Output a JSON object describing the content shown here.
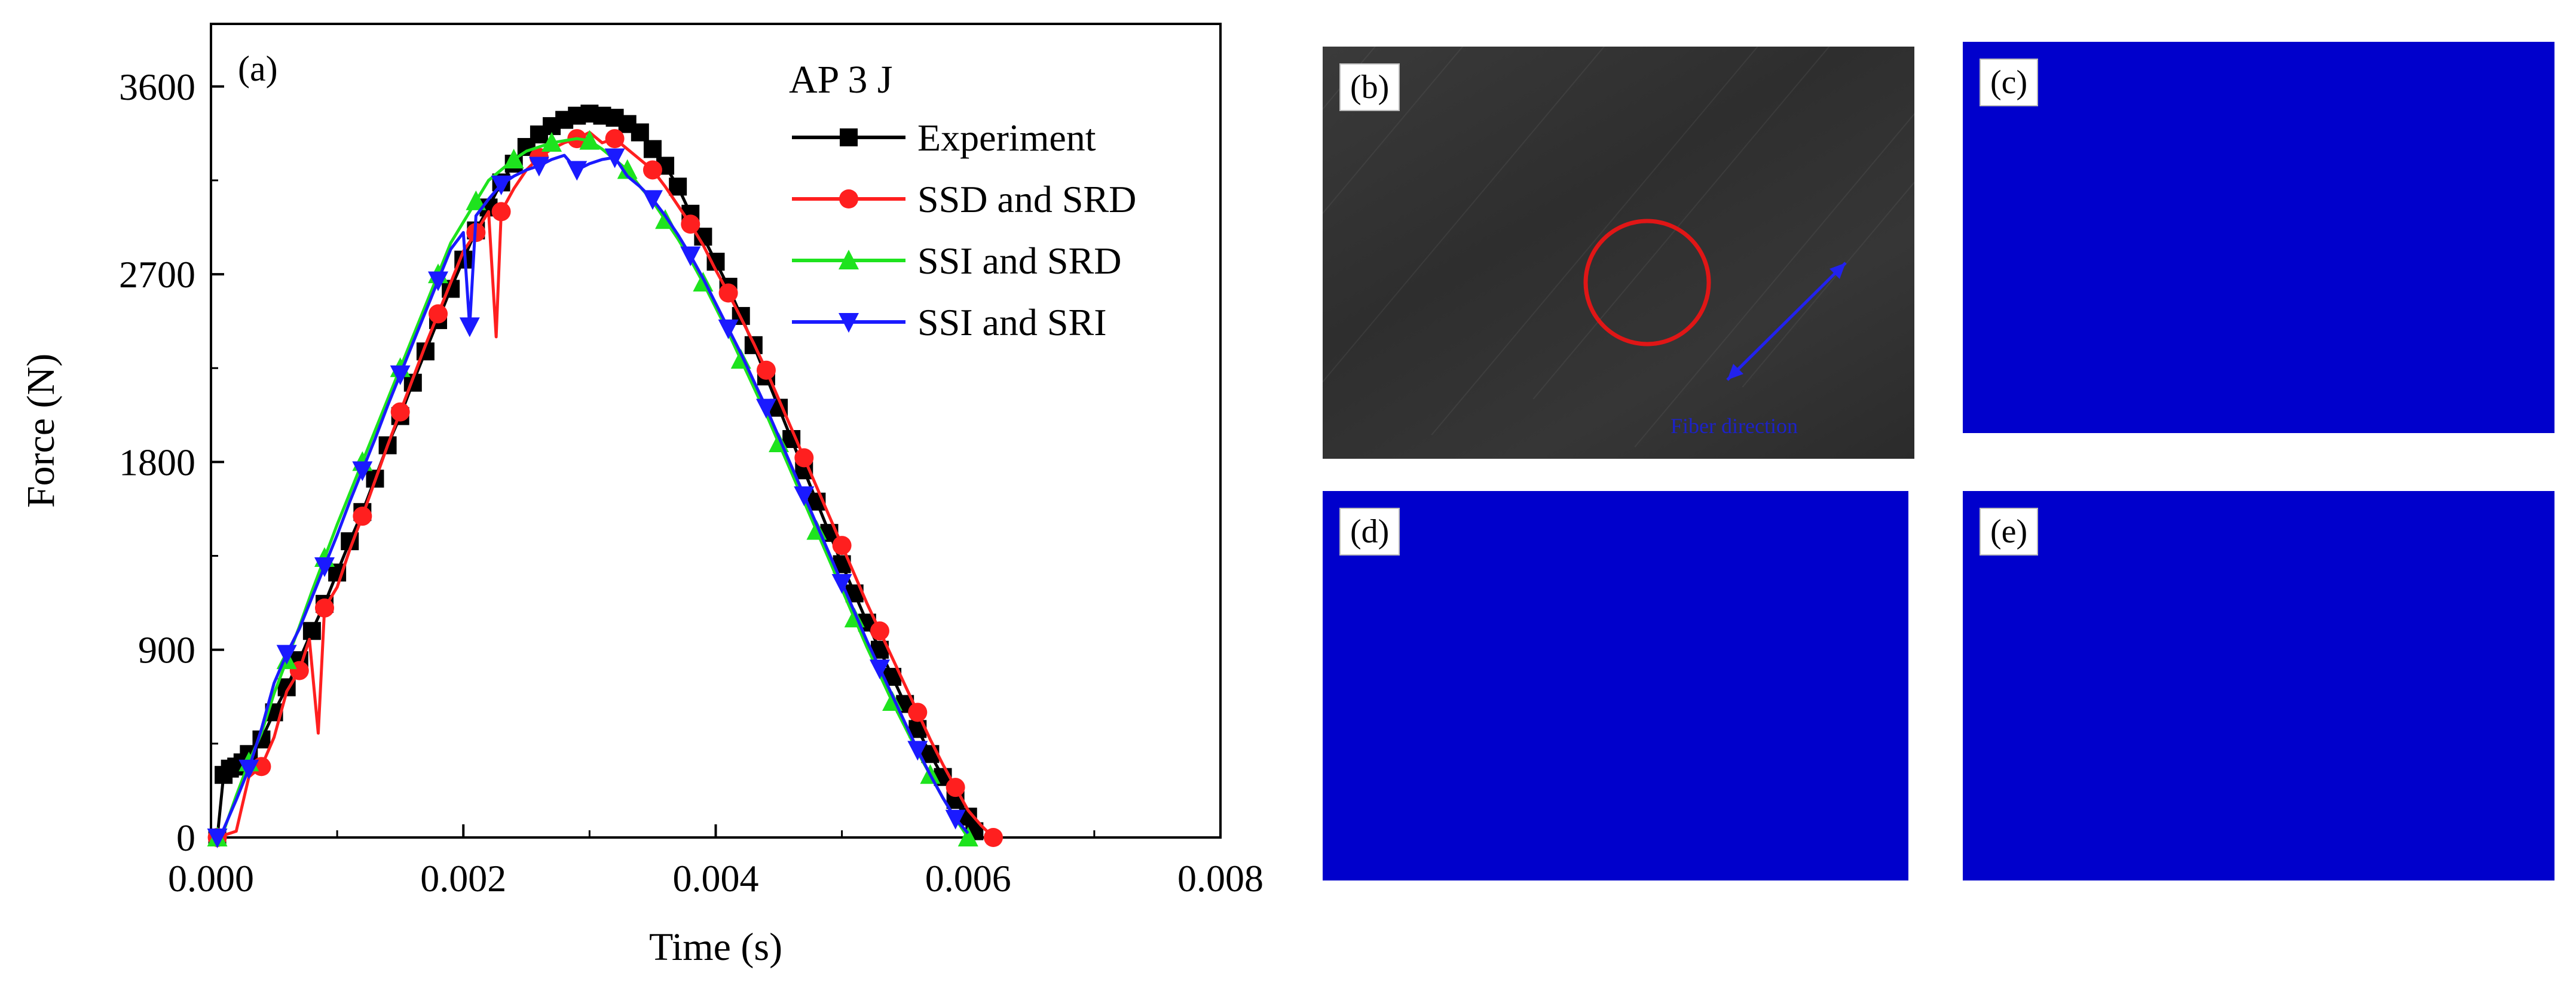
{
  "chart_data": {
    "type": "line",
    "panel_label": "(a)",
    "legend_title": "AP 3 J",
    "xlabel": "Time (s)",
    "ylabel": "Force (N)",
    "xlim": [
      0,
      0.008
    ],
    "ylim": [
      0,
      3900
    ],
    "x_ticks": [
      0,
      0.002,
      0.004,
      0.006,
      0.008
    ],
    "x_tick_labels": [
      "0.000",
      "0.002",
      "0.004",
      "0.006",
      "0.008"
    ],
    "y_ticks": [
      0,
      900,
      1800,
      2700,
      3600
    ],
    "y_tick_labels": [
      "0",
      "900",
      "1800",
      "2700",
      "3600"
    ],
    "legend_position": "top-right",
    "series": [
      {
        "name": "Experiment",
        "color": "#000000",
        "marker": "square",
        "x": [
          5e-05,
          0.0001,
          0.00015,
          0.0002,
          0.00025,
          0.0003,
          0.0004,
          0.0005,
          0.0006,
          0.0007,
          0.0008,
          0.0009,
          0.001,
          0.0011,
          0.0012,
          0.0013,
          0.0014,
          0.0015,
          0.0016,
          0.0017,
          0.0018,
          0.0019,
          0.002,
          0.0021,
          0.0022,
          0.0023,
          0.0024,
          0.0025,
          0.0026,
          0.0027,
          0.0028,
          0.0029,
          0.003,
          0.0031,
          0.0032,
          0.0033,
          0.0034,
          0.0035,
          0.0036,
          0.0037,
          0.0038,
          0.0039,
          0.004,
          0.0041,
          0.0042,
          0.0043,
          0.0044,
          0.0045,
          0.0046,
          0.0047,
          0.0048,
          0.0049,
          0.005,
          0.0051,
          0.0052,
          0.0053,
          0.0054,
          0.0055,
          0.0056,
          0.0057,
          0.0058,
          0.0059,
          0.006,
          0.00605
        ],
        "y": [
          0,
          300,
          330,
          340,
          360,
          400,
          470,
          600,
          720,
          850,
          990,
          1120,
          1270,
          1420,
          1560,
          1720,
          1880,
          2020,
          2180,
          2330,
          2480,
          2630,
          2770,
          2910,
          3020,
          3140,
          3230,
          3310,
          3370,
          3410,
          3440,
          3460,
          3470,
          3460,
          3450,
          3420,
          3380,
          3300,
          3220,
          3120,
          2990,
          2880,
          2760,
          2640,
          2500,
          2360,
          2210,
          2060,
          1910,
          1760,
          1610,
          1460,
          1310,
          1170,
          1030,
          900,
          770,
          640,
          520,
          400,
          290,
          180,
          100,
          30
        ]
      },
      {
        "name": "SSD and SRD",
        "color": "#ff1f1f",
        "marker": "circle",
        "x": [
          5e-05,
          0.0002,
          0.0003,
          0.0004,
          0.0005,
          0.0006,
          0.0007,
          0.00078,
          0.00085,
          0.0009,
          0.001,
          0.0011,
          0.0012,
          0.0013,
          0.0014,
          0.0015,
          0.0016,
          0.0017,
          0.0018,
          0.0019,
          0.002,
          0.0021,
          0.0022,
          0.00226,
          0.0023,
          0.0024,
          0.0025,
          0.0026,
          0.0027,
          0.0028,
          0.0029,
          0.003,
          0.0031,
          0.0032,
          0.0033,
          0.0034,
          0.0035,
          0.0036,
          0.0037,
          0.0038,
          0.0039,
          0.004,
          0.0041,
          0.0042,
          0.0043,
          0.0044,
          0.0045,
          0.0046,
          0.0047,
          0.0048,
          0.0049,
          0.005,
          0.0051,
          0.0052,
          0.0053,
          0.0054,
          0.0055,
          0.0056,
          0.0057,
          0.0058,
          0.0059,
          0.006,
          0.0061,
          0.0062
        ],
        "y": [
          0,
          30,
          290,
          340,
          480,
          700,
          800,
          950,
          500,
          1100,
          1200,
          1380,
          1540,
          1710,
          1880,
          2040,
          2200,
          2360,
          2510,
          2660,
          2810,
          2900,
          3000,
          2400,
          3000,
          3110,
          3200,
          3260,
          3300,
          3330,
          3350,
          3380,
          3330,
          3350,
          3300,
          3250,
          3200,
          3120,
          3030,
          2940,
          2840,
          2720,
          2610,
          2490,
          2370,
          2240,
          2100,
          1960,
          1820,
          1680,
          1540,
          1400,
          1260,
          1120,
          990,
          860,
          730,
          600,
          470,
          350,
          240,
          130,
          60,
          0
        ]
      },
      {
        "name": "SSI and SRD",
        "color": "#1ee31e",
        "marker": "triangle-up",
        "x": [
          5e-05,
          0.0001,
          0.0002,
          0.0003,
          0.0004,
          0.0005,
          0.0006,
          0.0007,
          0.0008,
          0.0009,
          0.001,
          0.0011,
          0.0012,
          0.0013,
          0.0014,
          0.0015,
          0.0016,
          0.0017,
          0.0018,
          0.0019,
          0.002,
          0.0021,
          0.0022,
          0.0023,
          0.0024,
          0.0025,
          0.0026,
          0.0027,
          0.0028,
          0.0029,
          0.003,
          0.0031,
          0.0032,
          0.0033,
          0.0034,
          0.0035,
          0.0036,
          0.0037,
          0.0038,
          0.0039,
          0.004,
          0.0041,
          0.0042,
          0.0043,
          0.0044,
          0.0045,
          0.0046,
          0.0047,
          0.0048,
          0.0049,
          0.005,
          0.0051,
          0.0052,
          0.0053,
          0.0054,
          0.0055,
          0.0056,
          0.0057,
          0.0058,
          0.0059,
          0.006
        ],
        "y": [
          0,
          30,
          200,
          360,
          500,
          690,
          850,
          1010,
          1180,
          1340,
          1500,
          1650,
          1800,
          1950,
          2100,
          2250,
          2400,
          2550,
          2700,
          2850,
          2950,
          3050,
          3150,
          3200,
          3250,
          3290,
          3310,
          3330,
          3340,
          3350,
          3340,
          3300,
          3250,
          3200,
          3120,
          3050,
          2960,
          2870,
          2770,
          2660,
          2540,
          2420,
          2290,
          2160,
          2030,
          1890,
          1750,
          1610,
          1470,
          1330,
          1190,
          1050,
          910,
          780,
          650,
          530,
          410,
          300,
          190,
          90,
          0
        ]
      },
      {
        "name": "SSI and SRI",
        "color": "#1a1aff",
        "marker": "triangle-down",
        "x": [
          5e-05,
          0.0001,
          0.0002,
          0.0003,
          0.0004,
          0.0005,
          0.0006,
          0.0007,
          0.0008,
          0.0009,
          0.001,
          0.0011,
          0.0012,
          0.0013,
          0.0014,
          0.0015,
          0.0016,
          0.0017,
          0.0018,
          0.0019,
          0.002,
          0.00205,
          0.0021,
          0.0022,
          0.0023,
          0.0024,
          0.0025,
          0.0026,
          0.0027,
          0.0028,
          0.0029,
          0.003,
          0.0031,
          0.0032,
          0.0033,
          0.0034,
          0.0035,
          0.0036,
          0.0037,
          0.0038,
          0.0039,
          0.004,
          0.0041,
          0.0042,
          0.0043,
          0.0044,
          0.0045,
          0.0046,
          0.0047,
          0.0048,
          0.0049,
          0.005,
          0.0051,
          0.0052,
          0.0053,
          0.0054,
          0.0055,
          0.0056,
          0.0057,
          0.0058,
          0.0059,
          0.006
        ],
        "y": [
          0,
          40,
          180,
          330,
          520,
          740,
          880,
          1000,
          1150,
          1300,
          1450,
          1610,
          1760,
          1910,
          2070,
          2220,
          2370,
          2520,
          2670,
          2820,
          2900,
          2450,
          2980,
          3060,
          3130,
          3170,
          3200,
          3220,
          3250,
          3270,
          3200,
          3230,
          3250,
          3260,
          3170,
          3120,
          3060,
          2980,
          2890,
          2790,
          2680,
          2560,
          2440,
          2320,
          2190,
          2060,
          1920,
          1780,
          1640,
          1500,
          1360,
          1220,
          1080,
          940,
          810,
          680,
          550,
          420,
          300,
          190,
          90,
          20
        ]
      }
    ]
  },
  "panels": {
    "b": {
      "label": "(b)",
      "annotation": "Fiber direction",
      "circle_color": "#e01616",
      "arrow_color": "#2222ee"
    },
    "c": {
      "label": "(c)",
      "fill_color": "#0000cc"
    },
    "d": {
      "label": "(d)",
      "fill_color": "#0000cc"
    },
    "e": {
      "label": "(e)",
      "fill_color": "#0000cc"
    }
  }
}
